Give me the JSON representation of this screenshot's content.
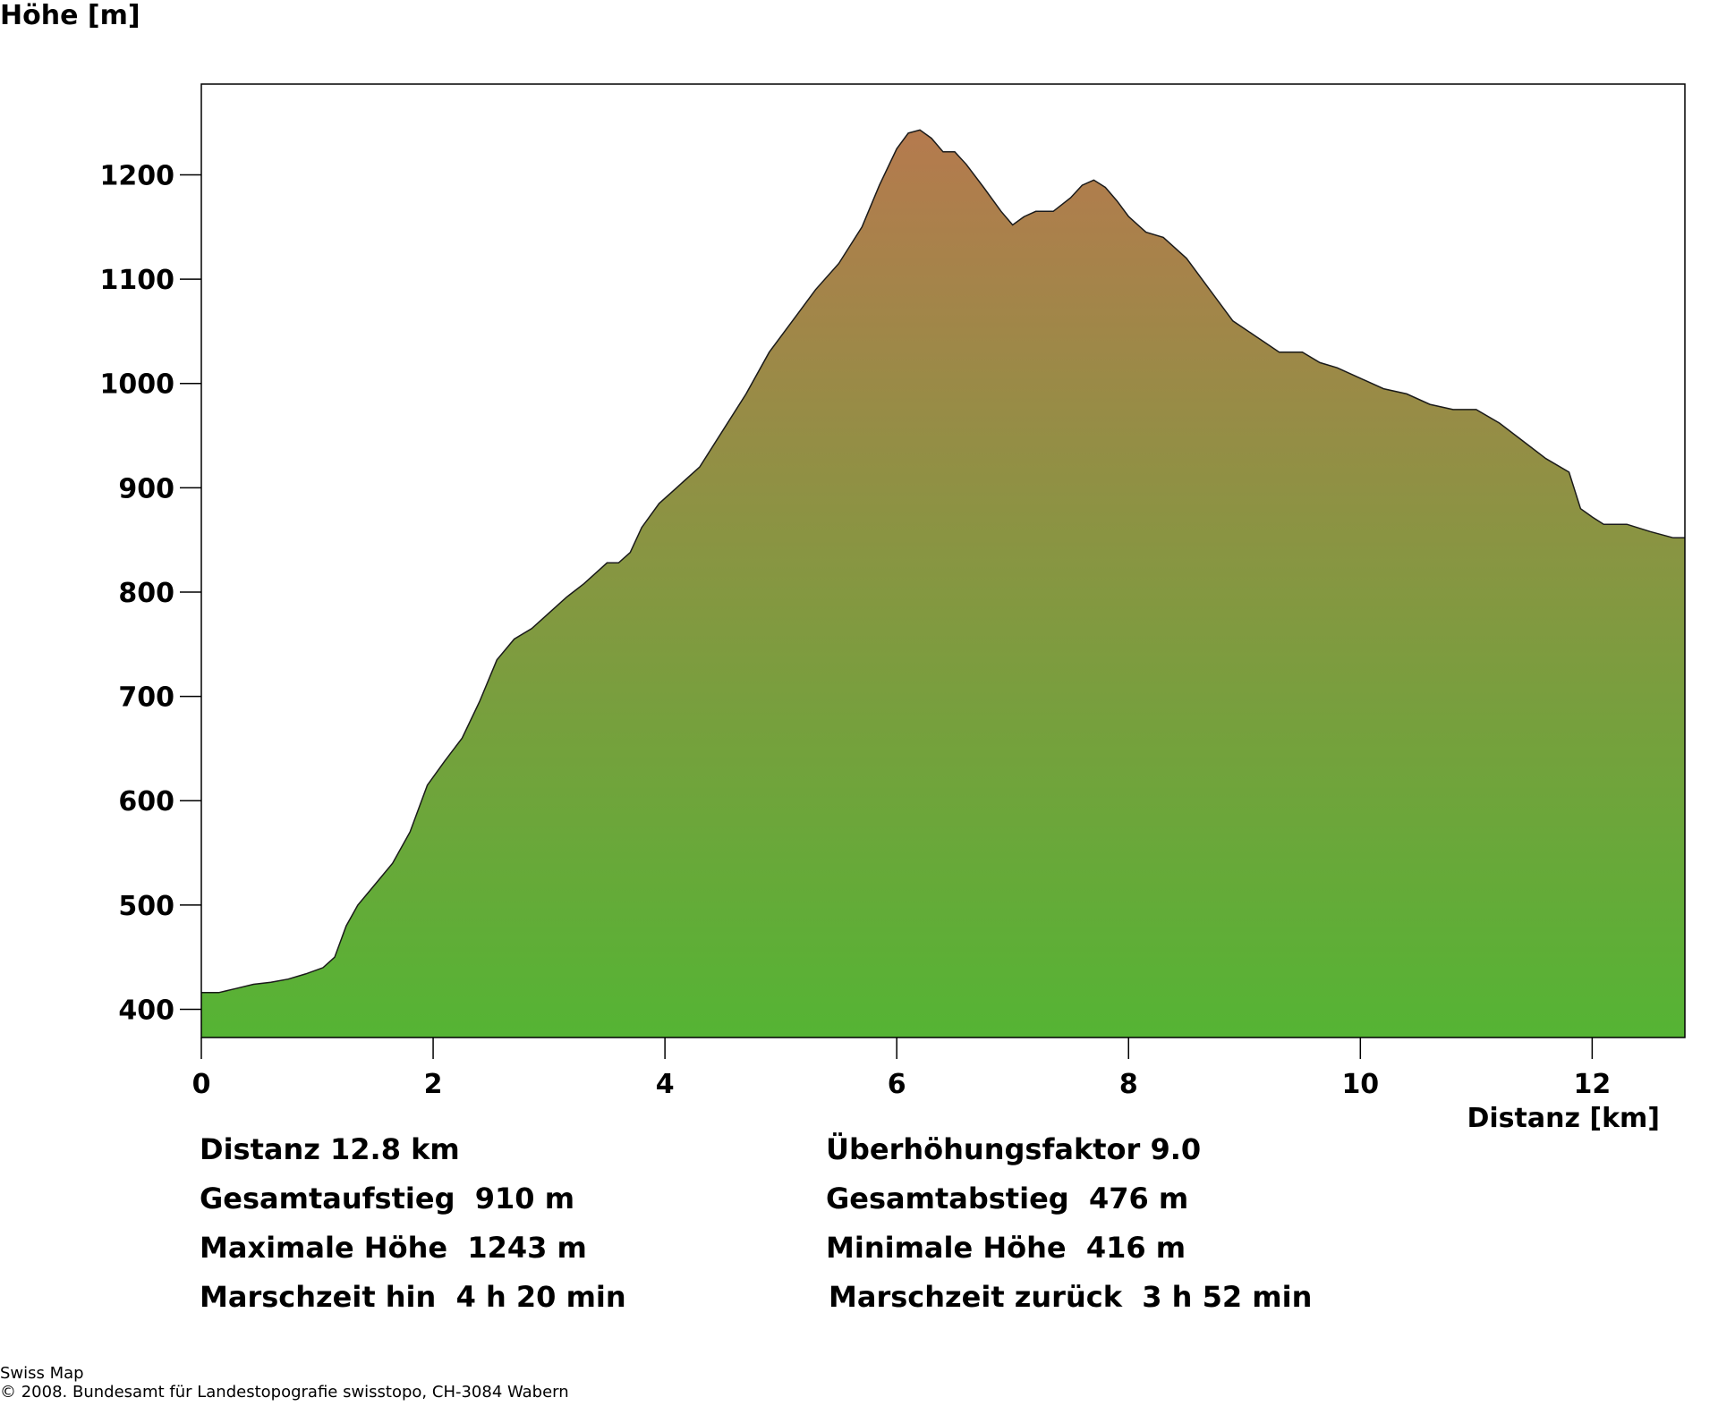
{
  "chart_data": {
    "type": "area",
    "ylabel": "Höhe [m]",
    "xlabel": "Distanz [km]",
    "xlim": [
      0,
      12.8
    ],
    "ylim": [
      373,
      1287
    ],
    "x_ticks": [
      0,
      2,
      4,
      6,
      8,
      10,
      12
    ],
    "y_ticks": [
      400,
      500,
      600,
      700,
      800,
      900,
      1000,
      1100,
      1200
    ],
    "gradient": {
      "bottom_color": "#55b434",
      "top_color": "#b57a4e"
    },
    "profile": {
      "x": [
        0,
        0.15,
        0.3,
        0.45,
        0.6,
        0.75,
        0.9,
        1.05,
        1.15,
        1.25,
        1.35,
        1.5,
        1.65,
        1.8,
        1.95,
        2.1,
        2.25,
        2.4,
        2.55,
        2.7,
        2.85,
        3.0,
        3.15,
        3.3,
        3.5,
        3.6,
        3.7,
        3.8,
        3.95,
        4.1,
        4.3,
        4.5,
        4.7,
        4.9,
        5.1,
        5.3,
        5.5,
        5.7,
        5.85,
        6.0,
        6.1,
        6.2,
        6.3,
        6.4,
        6.5,
        6.6,
        6.75,
        6.9,
        7.0,
        7.1,
        7.2,
        7.35,
        7.5,
        7.6,
        7.7,
        7.8,
        7.9,
        8.0,
        8.15,
        8.3,
        8.5,
        8.7,
        8.9,
        9.1,
        9.3,
        9.5,
        9.65,
        9.8,
        10.0,
        10.2,
        10.4,
        10.6,
        10.8,
        11.0,
        11.2,
        11.4,
        11.6,
        11.8,
        11.9,
        12.0,
        12.1,
        12.3,
        12.5,
        12.7,
        12.8
      ],
      "y": [
        416,
        416,
        420,
        424,
        426,
        429,
        434,
        440,
        450,
        480,
        500,
        520,
        540,
        570,
        615,
        638,
        660,
        695,
        735,
        755,
        765,
        780,
        795,
        808,
        828,
        828,
        838,
        862,
        885,
        900,
        920,
        955,
        990,
        1030,
        1060,
        1090,
        1115,
        1150,
        1190,
        1225,
        1240,
        1243,
        1235,
        1222,
        1222,
        1210,
        1188,
        1165,
        1152,
        1160,
        1165,
        1165,
        1178,
        1190,
        1195,
        1188,
        1175,
        1160,
        1145,
        1140,
        1120,
        1090,
        1060,
        1045,
        1030,
        1030,
        1020,
        1015,
        1005,
        995,
        990,
        980,
        975,
        975,
        962,
        945,
        928,
        915,
        880,
        872,
        865,
        865,
        858,
        852,
        852
      ]
    }
  },
  "stats": {
    "left": [
      "Distanz 12.8 km",
      "Gesamtaufstieg  910 m",
      "Maximale Höhe  1243 m",
      "Marschzeit hin  4 h 20 min"
    ],
    "right": [
      "Überhöhungsfaktor 9.0",
      "Gesamtabstieg  476 m",
      "Minimale Höhe  416 m",
      "Marschzeit zurück  3 h 52 min"
    ]
  },
  "footer": {
    "line1": "Swiss Map",
    "line2": "© 2008. Bundesamt für Landestopografie swisstopo, CH-3084 Wabern"
  }
}
